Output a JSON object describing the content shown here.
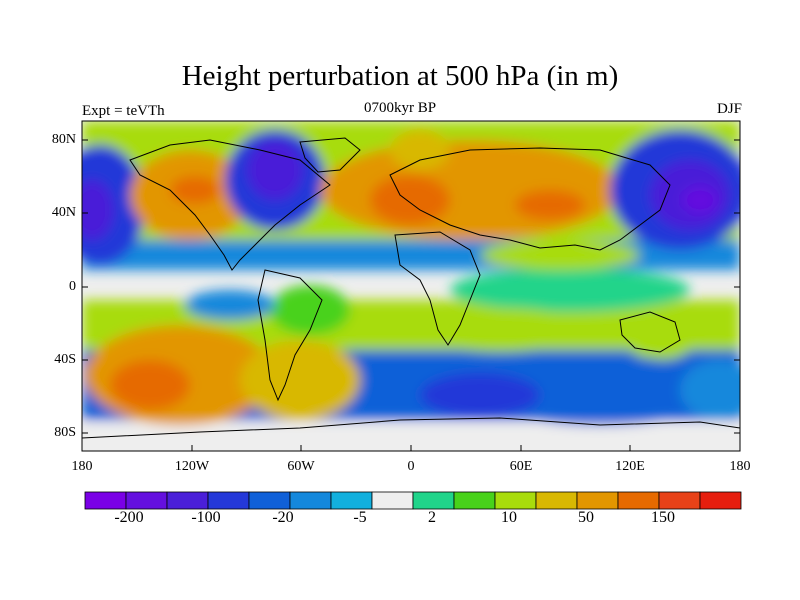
{
  "header": {
    "title": "Height perturbation at 500 hPa (in m)",
    "left": "Expt = teVTh",
    "center": "0700kyr BP",
    "right": "DJF"
  },
  "axes": {
    "lat_ticks": [
      "80N",
      "40N",
      "0",
      "40S",
      "80S"
    ],
    "lon_ticks": [
      "180",
      "120W",
      "60W",
      "0",
      "60E",
      "120E",
      "180"
    ]
  },
  "colorbar": {
    "colors": [
      "#7a00e6",
      "#6410df",
      "#4a1fd8",
      "#2438d8",
      "#1060d8",
      "#1488dc",
      "#12b0de",
      "#eeeeee",
      "#20d48a",
      "#48d21a",
      "#a8dc0c",
      "#d8b802",
      "#e29600",
      "#e66a00",
      "#e84218",
      "#e61e0e"
    ],
    "labels": [
      "-200",
      "-100",
      "-20",
      "-5",
      "2",
      "10",
      "50",
      "150"
    ]
  }
}
